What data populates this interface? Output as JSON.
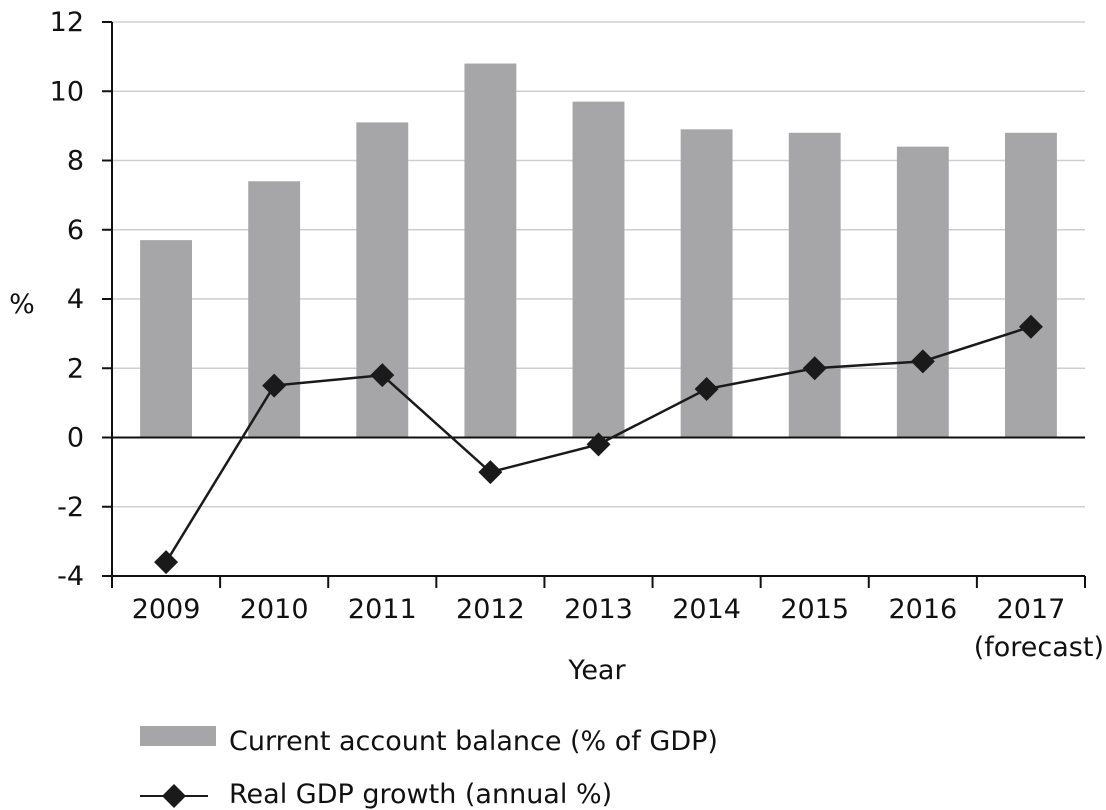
{
  "chart_data": {
    "type": "bar",
    "categories": [
      "2009",
      "2010",
      "2011",
      "2012",
      "2013",
      "2014",
      "2015",
      "2016",
      "2017"
    ],
    "category_labels": [
      [
        "2009"
      ],
      [
        "2010"
      ],
      [
        "2011"
      ],
      [
        "2012"
      ],
      [
        "2013"
      ],
      [
        "2014"
      ],
      [
        "2015"
      ],
      [
        "2016"
      ],
      [
        "2017",
        "(forecast)"
      ]
    ],
    "series": [
      {
        "name": "Current account balance (% of GDP)",
        "type": "bar",
        "color": "#a6a6a9",
        "values": [
          5.7,
          7.4,
          9.1,
          10.8,
          9.7,
          8.9,
          8.8,
          8.4,
          8.8
        ]
      },
      {
        "name": "Real GDP growth (annual %)",
        "type": "line",
        "marker": "diamond",
        "color": "#1a1a1a",
        "values": [
          -3.6,
          1.5,
          1.8,
          -1.0,
          -0.2,
          1.4,
          2.0,
          2.2,
          3.2
        ]
      }
    ],
    "xlabel": "Year",
    "ylabel": "%",
    "ylim": [
      -4,
      12
    ],
    "yticks": [
      -4,
      -2,
      0,
      2,
      4,
      6,
      8,
      10,
      12
    ],
    "grid": true,
    "legend_position": "bottom"
  }
}
